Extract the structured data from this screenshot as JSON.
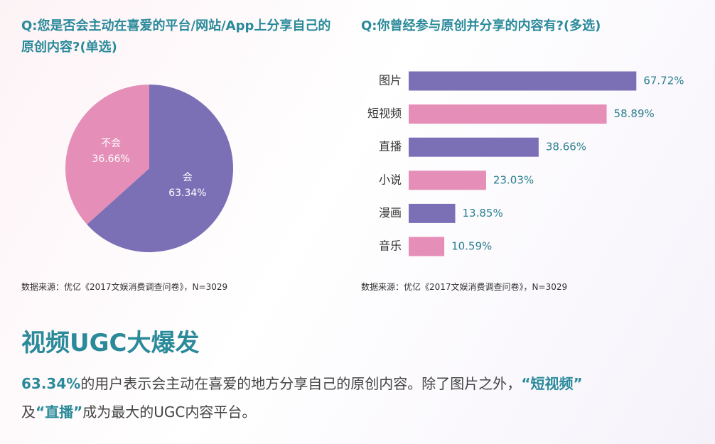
{
  "chart_data": [
    {
      "type": "pie",
      "title": "Q:您是否会主动在喜爱的平台/网站/App上分享自己的原创内容?(单选)",
      "categories": [
        "会",
        "不会"
      ],
      "values": [
        63.34,
        36.66
      ],
      "value_labels": [
        "63.34%",
        "36.66%"
      ],
      "colors": [
        "#7b70b6",
        "#e58fb8"
      ],
      "source": "数据来源：优亿《2017文娱消费调查问卷》，N=3029"
    },
    {
      "type": "bar",
      "orientation": "horizontal",
      "title": "Q:你曾经参与原创并分享的内容有?(多选)",
      "categories": [
        "图片",
        "短视频",
        "直播",
        "小说",
        "漫画",
        "音乐"
      ],
      "values": [
        67.72,
        58.89,
        38.66,
        23.03,
        13.85,
        10.59
      ],
      "value_labels": [
        "67.72%",
        "58.89%",
        "38.66%",
        "23.03%",
        "13.85%",
        "10.59%"
      ],
      "colors": [
        "#7b70b6",
        "#e58fb8",
        "#7b70b6",
        "#e58fb8",
        "#7b70b6",
        "#e58fb8"
      ],
      "source": "数据来源：优亿《2017文娱消费调查问卷》，N=3029"
    }
  ],
  "heading": "视频UGC大爆发",
  "paragraph": [
    "63.34%",
    "的用户表示会主动在喜爱的地方分享自己的原创内容。除了图片之外，",
    "“短视频”",
    "及",
    "“直播”",
    "成为最大的UGC内容平台。"
  ]
}
